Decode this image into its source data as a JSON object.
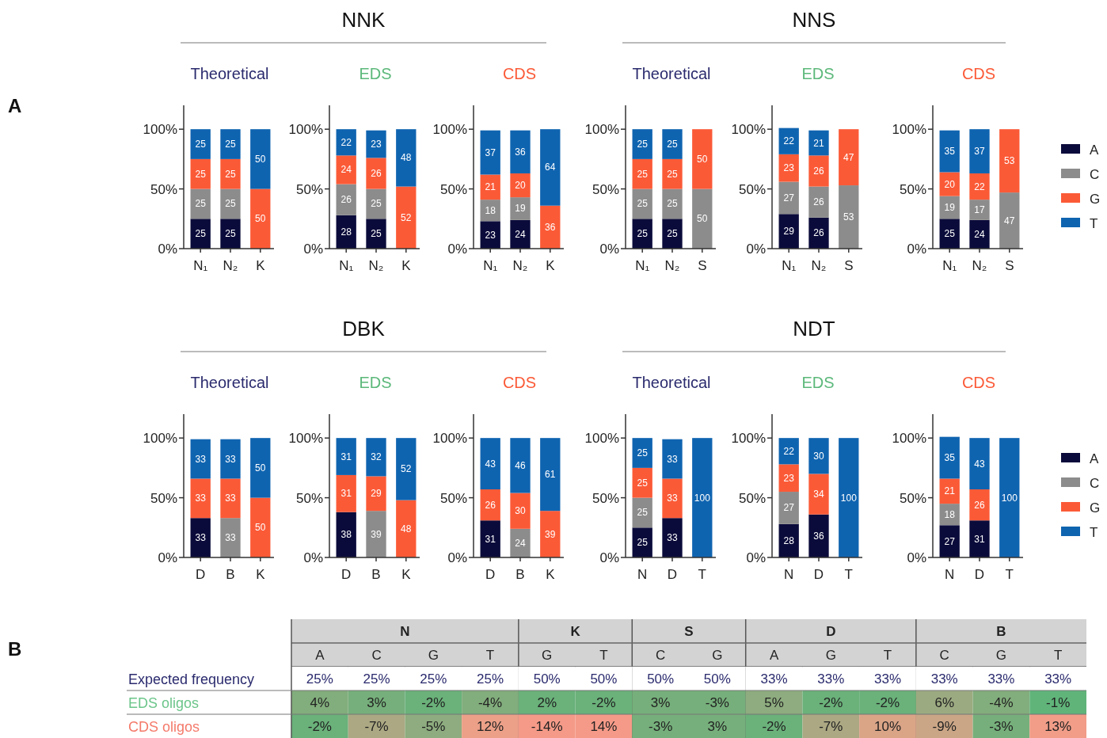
{
  "chart_data": [
    {
      "type": "bar",
      "stacked": true,
      "title": "Theoretical",
      "annotations": [
        "NNK",
        "A"
      ],
      "categories": [
        "N₁",
        "N₂",
        "K"
      ],
      "ylim": [
        0,
        120
      ],
      "yticks": [
        {
          "value": 0,
          "label": "0%"
        },
        {
          "value": 50,
          "label": "50%"
        },
        {
          "value": 100,
          "label": "100%"
        }
      ],
      "data_labels": true,
      "series": [
        {
          "color": "#0b0b3b",
          "values": [
            25,
            25,
            null
          ]
        },
        {
          "color": "#8c8c8c",
          "values": [
            25,
            25,
            null
          ]
        },
        {
          "color": "#fb5a37",
          "values": [
            25,
            25,
            50
          ]
        },
        {
          "color": "#0f64b0",
          "values": [
            25,
            25,
            50
          ]
        }
      ]
    },
    {
      "type": "bar",
      "stacked": true,
      "title": "EDS",
      "categories": [
        "N₁",
        "N₂",
        "K"
      ],
      "ylim": [
        0,
        120
      ],
      "yticks": [
        {
          "value": 0,
          "label": "0%"
        },
        {
          "value": 50,
          "label": "50%"
        },
        {
          "value": 100,
          "label": "100%"
        }
      ],
      "data_labels": true,
      "series": [
        {
          "color": "#0b0b3b",
          "values": [
            28,
            25,
            null
          ]
        },
        {
          "color": "#8c8c8c",
          "values": [
            26,
            25,
            null
          ]
        },
        {
          "color": "#fb5a37",
          "values": [
            24,
            26,
            52
          ]
        },
        {
          "color": "#0f64b0",
          "values": [
            22,
            23,
            48
          ]
        }
      ]
    },
    {
      "type": "bar",
      "stacked": true,
      "title": "CDS",
      "categories": [
        "N₁",
        "N₂",
        "K"
      ],
      "ylim": [
        0,
        120
      ],
      "yticks": [
        {
          "value": 0,
          "label": "0%"
        },
        {
          "value": 50,
          "label": "50%"
        },
        {
          "value": 100,
          "label": "100%"
        }
      ],
      "data_labels": true,
      "series": [
        {
          "color": "#0b0b3b",
          "values": [
            23,
            24,
            null
          ]
        },
        {
          "color": "#8c8c8c",
          "values": [
            18,
            19,
            null
          ]
        },
        {
          "color": "#fb5a37",
          "values": [
            21,
            20,
            36
          ]
        },
        {
          "color": "#0f64b0",
          "values": [
            37,
            36,
            64
          ]
        }
      ]
    },
    {
      "type": "bar",
      "stacked": true,
      "title": "Theoretical",
      "annotations": [
        "NNS"
      ],
      "categories": [
        "N₁",
        "N₂",
        "S"
      ],
      "ylim": [
        0,
        120
      ],
      "yticks": [
        {
          "value": 0,
          "label": "0%"
        },
        {
          "value": 50,
          "label": "50%"
        },
        {
          "value": 100,
          "label": "100%"
        }
      ],
      "data_labels": true,
      "series": [
        {
          "color": "#0b0b3b",
          "values": [
            25,
            25,
            null
          ]
        },
        {
          "color": "#8c8c8c",
          "values": [
            25,
            25,
            50
          ]
        },
        {
          "color": "#fb5a37",
          "values": [
            25,
            25,
            50
          ]
        },
        {
          "color": "#0f64b0",
          "values": [
            25,
            25,
            null
          ]
        }
      ]
    },
    {
      "type": "bar",
      "stacked": true,
      "title": "EDS",
      "categories": [
        "N₁",
        "N₂",
        "S"
      ],
      "ylim": [
        0,
        120
      ],
      "yticks": [
        {
          "value": 0,
          "label": "0%"
        },
        {
          "value": 50,
          "label": "50%"
        },
        {
          "value": 100,
          "label": "100%"
        }
      ],
      "data_labels": true,
      "series": [
        {
          "color": "#0b0b3b",
          "values": [
            29,
            26,
            null
          ]
        },
        {
          "color": "#8c8c8c",
          "values": [
            27,
            26,
            53
          ]
        },
        {
          "color": "#fb5a37",
          "values": [
            23,
            26,
            47
          ]
        },
        {
          "color": "#0f64b0",
          "values": [
            22,
            21,
            null
          ]
        }
      ]
    },
    {
      "type": "bar",
      "stacked": true,
      "title": "CDS",
      "categories": [
        "N₁",
        "N₂",
        "S"
      ],
      "ylim": [
        0,
        120
      ],
      "yticks": [
        {
          "value": 0,
          "label": "0%"
        },
        {
          "value": 50,
          "label": "50%"
        },
        {
          "value": 100,
          "label": "100%"
        }
      ],
      "data_labels": true,
      "legend": "right",
      "series": [
        {
          "name": "A",
          "color": "#0b0b3b",
          "values": [
            25,
            24,
            null
          ]
        },
        {
          "name": "C",
          "color": "#8c8c8c",
          "values": [
            19,
            17,
            47
          ]
        },
        {
          "name": "G",
          "color": "#fb5a37",
          "values": [
            20,
            22,
            53
          ]
        },
        {
          "name": "T",
          "color": "#0f64b0",
          "values": [
            35,
            37,
            null
          ]
        }
      ]
    },
    {
      "type": "bar",
      "stacked": true,
      "title": "Theoretical",
      "annotations": [
        "DBK"
      ],
      "categories": [
        "D",
        "B",
        "K"
      ],
      "ylim": [
        0,
        120
      ],
      "yticks": [
        {
          "value": 0,
          "label": "0%"
        },
        {
          "value": 50,
          "label": "50%"
        },
        {
          "value": 100,
          "label": "100%"
        }
      ],
      "data_labels": true,
      "series": [
        {
          "color": "#0b0b3b",
          "values": [
            33,
            null,
            null
          ]
        },
        {
          "color": "#8c8c8c",
          "values": [
            null,
            33,
            null
          ]
        },
        {
          "color": "#fb5a37",
          "values": [
            33,
            33,
            50
          ]
        },
        {
          "color": "#0f64b0",
          "values": [
            33,
            33,
            50
          ]
        }
      ]
    },
    {
      "type": "bar",
      "stacked": true,
      "title": "EDS",
      "categories": [
        "D",
        "B",
        "K"
      ],
      "ylim": [
        0,
        120
      ],
      "yticks": [
        {
          "value": 0,
          "label": "0%"
        },
        {
          "value": 50,
          "label": "50%"
        },
        {
          "value": 100,
          "label": "100%"
        }
      ],
      "data_labels": true,
      "series": [
        {
          "color": "#0b0b3b",
          "values": [
            38,
            null,
            null
          ]
        },
        {
          "color": "#8c8c8c",
          "values": [
            null,
            39,
            null
          ]
        },
        {
          "color": "#fb5a37",
          "values": [
            31,
            29,
            48
          ]
        },
        {
          "color": "#0f64b0",
          "values": [
            31,
            32,
            52
          ]
        }
      ]
    },
    {
      "type": "bar",
      "stacked": true,
      "title": "CDS",
      "categories": [
        "D",
        "B",
        "K"
      ],
      "ylim": [
        0,
        120
      ],
      "yticks": [
        {
          "value": 0,
          "label": "0%"
        },
        {
          "value": 50,
          "label": "50%"
        },
        {
          "value": 100,
          "label": "100%"
        }
      ],
      "data_labels": true,
      "series": [
        {
          "color": "#0b0b3b",
          "values": [
            31,
            null,
            null
          ]
        },
        {
          "color": "#8c8c8c",
          "values": [
            null,
            24,
            null
          ]
        },
        {
          "color": "#fb5a37",
          "values": [
            26,
            30,
            39
          ]
        },
        {
          "color": "#0f64b0",
          "values": [
            43,
            46,
            61
          ]
        }
      ]
    },
    {
      "type": "bar",
      "stacked": true,
      "title": "Theoretical",
      "annotations": [
        "NDT"
      ],
      "categories": [
        "N",
        "D",
        "T"
      ],
      "ylim": [
        0,
        120
      ],
      "yticks": [
        {
          "value": 0,
          "label": "0%"
        },
        {
          "value": 50,
          "label": "50%"
        },
        {
          "value": 100,
          "label": "100%"
        }
      ],
      "data_labels": true,
      "series": [
        {
          "color": "#0b0b3b",
          "values": [
            25,
            33,
            null
          ]
        },
        {
          "color": "#8c8c8c",
          "values": [
            25,
            null,
            null
          ]
        },
        {
          "color": "#fb5a37",
          "values": [
            25,
            33,
            null
          ]
        },
        {
          "color": "#0f64b0",
          "values": [
            25,
            33,
            100
          ]
        }
      ]
    },
    {
      "type": "bar",
      "stacked": true,
      "title": "EDS",
      "categories": [
        "N",
        "D",
        "T"
      ],
      "ylim": [
        0,
        120
      ],
      "yticks": [
        {
          "value": 0,
          "label": "0%"
        },
        {
          "value": 50,
          "label": "50%"
        },
        {
          "value": 100,
          "label": "100%"
        }
      ],
      "data_labels": true,
      "series": [
        {
          "color": "#0b0b3b",
          "values": [
            28,
            36,
            null
          ]
        },
        {
          "color": "#8c8c8c",
          "values": [
            27,
            null,
            null
          ]
        },
        {
          "color": "#fb5a37",
          "values": [
            23,
            34,
            null
          ]
        },
        {
          "color": "#0f64b0",
          "values": [
            22,
            30,
            100
          ]
        }
      ]
    },
    {
      "type": "bar",
      "stacked": true,
      "title": "CDS",
      "categories": [
        "N",
        "D",
        "T"
      ],
      "ylim": [
        0,
        120
      ],
      "yticks": [
        {
          "value": 0,
          "label": "0%"
        },
        {
          "value": 50,
          "label": "50%"
        },
        {
          "value": 100,
          "label": "100%"
        }
      ],
      "data_labels": true,
      "legend": "right",
      "series": [
        {
          "name": "A",
          "color": "#0b0b3b",
          "values": [
            27,
            31,
            null
          ]
        },
        {
          "name": "C",
          "color": "#8c8c8c",
          "values": [
            18,
            null,
            null
          ]
        },
        {
          "name": "G",
          "color": "#fb5a37",
          "values": [
            21,
            26,
            null
          ]
        },
        {
          "name": "T",
          "color": "#0f64b0",
          "values": [
            35,
            43,
            100
          ]
        }
      ]
    },
    {
      "type": "heatmap",
      "annotations": [
        "B",
        "N",
        "K",
        "S",
        "D",
        "B"
      ],
      "categories": [
        "A",
        "C",
        "G",
        "T",
        "G",
        "T",
        "C",
        "G",
        "A",
        "G",
        "T",
        "C",
        "G",
        "T"
      ],
      "y_categories": [
        "Expected frequency",
        "EDS oligos",
        "CDS oligos"
      ],
      "cells": [
        [
          25,
          25,
          25,
          25,
          50,
          50,
          50,
          50,
          33,
          33,
          33,
          33,
          33,
          33
        ],
        [
          4,
          3,
          -2,
          -4,
          2,
          -2,
          3,
          -3,
          5,
          -2,
          -2,
          6,
          -4,
          -1
        ],
        [
          -2,
          -7,
          -5,
          12,
          -14,
          14,
          -3,
          3,
          -2,
          -7,
          10,
          -9,
          -3,
          13
        ]
      ],
      "cell_labels": [
        [
          "25%",
          "25%",
          "25%",
          "25%",
          "50%",
          "50%",
          "50%",
          "50%",
          "33%",
          "33%",
          "33%",
          "33%",
          "33%",
          "33%"
        ],
        [
          "4%",
          "3%",
          "-2%",
          "-4%",
          "2%",
          "-2%",
          "3%",
          "-3%",
          "5%",
          "-2%",
          "-2%",
          "6%",
          "-4%",
          "-1%"
        ],
        [
          "-2%",
          "-7%",
          "-5%",
          "12%",
          "-14%",
          "14%",
          "-3%",
          "3%",
          "-2%",
          "-7%",
          "10%",
          "-9%",
          "-3%",
          "13%"
        ]
      ]
    }
  ]
}
